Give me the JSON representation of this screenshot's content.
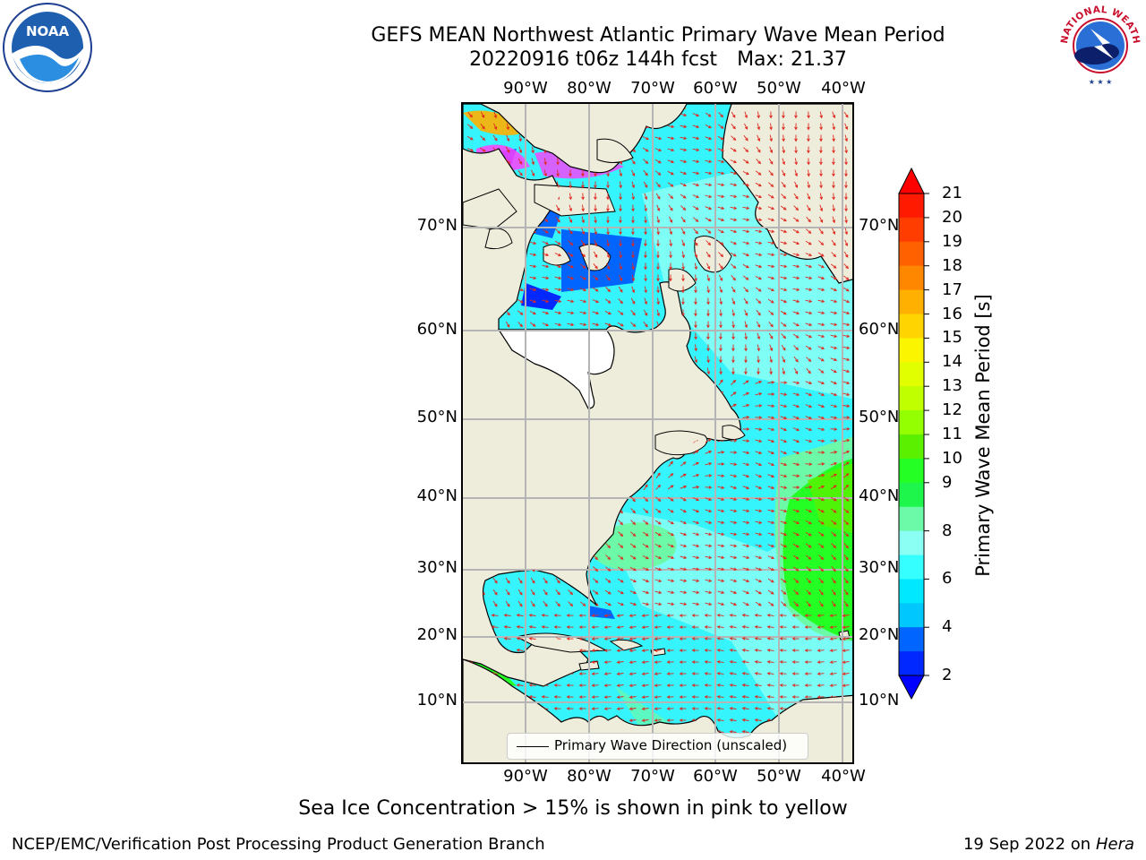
{
  "title": {
    "line1": "GEFS MEAN Northwest Atlantic Primary Wave Mean Period",
    "run": "20220916 t06z 144h fcst",
    "max": "Max: 21.37"
  },
  "map": {
    "lon_labels": [
      "90°W",
      "80°W",
      "70°W",
      "60°W",
      "50°W",
      "40°W"
    ],
    "lat_labels": [
      "70°N",
      "60°N",
      "50°N",
      "40°N",
      "30°N",
      "20°N",
      "10°N"
    ],
    "ocean_color": "#35f4fb",
    "land_color": "#eeeddc",
    "arrow_color": "#e0281e",
    "legend": "Primary Wave Direction (unscaled)"
  },
  "colorbar": {
    "label": "Primary Wave Mean Period [s]",
    "ticks": [
      "21",
      "20",
      "19",
      "18",
      "17",
      "16",
      "15",
      "14",
      "13",
      "12",
      "11",
      "10",
      "9",
      "8",
      "6",
      "4",
      "2"
    ],
    "colors_top_to_bottom": [
      "#ff1a00",
      "#ff3d00",
      "#ff6000",
      "#ff8700",
      "#ffb000",
      "#ffd400",
      "#fbf500",
      "#e2ff00",
      "#bfff00",
      "#94ff00",
      "#5af000",
      "#24ff24",
      "#1ef64c",
      "#6cfaa8",
      "#8cfff4",
      "#35ffff",
      "#00e8ff",
      "#00c8ff",
      "#0064ff",
      "#0028ff"
    ],
    "under_color": "#0000ff",
    "over_color": "#ff0000"
  },
  "subtitle": "Sea Ice Concentration > 15% is shown in pink to yellow",
  "footer": {
    "left": "NCEP/EMC/Verification Post Processing Product Generation Branch",
    "date": "19 Sep 2022 on",
    "host": "Hera"
  },
  "logos": {
    "noaa_text": "NOAA",
    "nws_text": "NATIONAL WEATHER SERVICE"
  }
}
